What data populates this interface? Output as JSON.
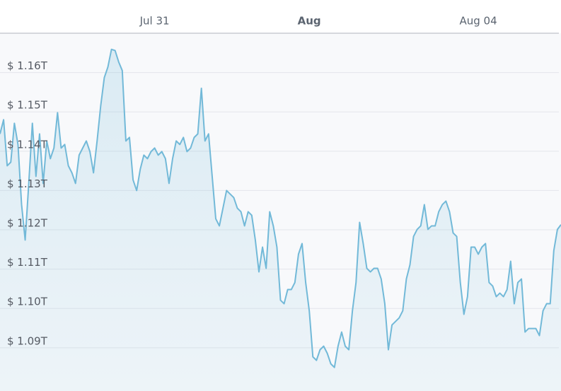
{
  "chart_data": {
    "type": "area",
    "values": [
      1.1444,
      1.148,
      1.1363,
      1.1372,
      1.1471,
      1.1417,
      1.1264,
      1.1174,
      1.1318,
      1.1471,
      1.1336,
      1.1444,
      1.1318,
      1.1426,
      1.1381,
      1.1408,
      1.1498,
      1.1408,
      1.1417,
      1.1363,
      1.1345,
      1.1318,
      1.139,
      1.1408,
      1.1426,
      1.1399,
      1.1345,
      1.1426,
      1.1515,
      1.1587,
      1.1614,
      1.1659,
      1.1656,
      1.1627,
      1.1605,
      1.1426,
      1.1435,
      1.1327,
      1.13,
      1.1354,
      1.139,
      1.1381,
      1.1399,
      1.1408,
      1.139,
      1.1399,
      1.1381,
      1.1318,
      1.1381,
      1.1426,
      1.1417,
      1.1435,
      1.1399,
      1.1408,
      1.1435,
      1.1444,
      1.156,
      1.1426,
      1.1444,
      1.1336,
      1.1228,
      1.121,
      1.1255,
      1.13,
      1.1291,
      1.1282,
      1.1255,
      1.1246,
      1.121,
      1.1246,
      1.1237,
      1.1174,
      1.1093,
      1.1156,
      1.1102,
      1.1246,
      1.121,
      1.1156,
      1.1021,
      1.1012,
      1.1048,
      1.1048,
      1.1066,
      1.1138,
      1.1165,
      1.1066,
      1.0994,
      1.0877,
      1.0868,
      1.0895,
      1.0904,
      1.0886,
      1.0859,
      1.085,
      1.0904,
      1.094,
      1.0904,
      1.0895,
      1.0994,
      1.1066,
      1.1219,
      1.1165,
      1.1102,
      1.1093,
      1.1102,
      1.1102,
      1.1075,
      1.1012,
      1.0895,
      1.0958,
      1.0967,
      1.0976,
      1.0994,
      1.1075,
      1.1111,
      1.1183,
      1.1201,
      1.121,
      1.1264,
      1.1201,
      1.121,
      1.121,
      1.1246,
      1.1264,
      1.1273,
      1.1246,
      1.1192,
      1.1183,
      1.1066,
      1.0985,
      1.103,
      1.1156,
      1.1156,
      1.1138,
      1.1156,
      1.1165,
      1.1066,
      1.1057,
      1.103,
      1.1039,
      1.103,
      1.1048,
      1.112,
      1.1012,
      1.1066,
      1.1075,
      1.094,
      1.0949,
      1.0949,
      1.0949,
      1.0931,
      1.0994,
      1.1012,
      1.1012,
      1.1147,
      1.1201,
      1.1213
    ],
    "color": "#72b9d8",
    "xticks": [
      {
        "value": 43,
        "label": "Jul 31"
      },
      {
        "value": 86,
        "label": "Aug"
      },
      {
        "value": 133,
        "label": "Aug 04"
      }
    ],
    "ylim": [
      1.079,
      1.17
    ],
    "yticks": [
      {
        "value": 1.09,
        "label": "$ 1.09T"
      },
      {
        "value": 1.1,
        "label": "$ 1.10T"
      },
      {
        "value": 1.11,
        "label": "$ 1.11T"
      },
      {
        "value": 1.12,
        "label": "$ 1.12T"
      },
      {
        "value": 1.13,
        "label": "$ 1.13T"
      },
      {
        "value": 1.14,
        "label": "$ 1.14T"
      },
      {
        "value": 1.15,
        "label": "$ 1.15T"
      },
      {
        "value": 1.16,
        "label": "$ 1.16T"
      }
    ],
    "grid": true
  }
}
